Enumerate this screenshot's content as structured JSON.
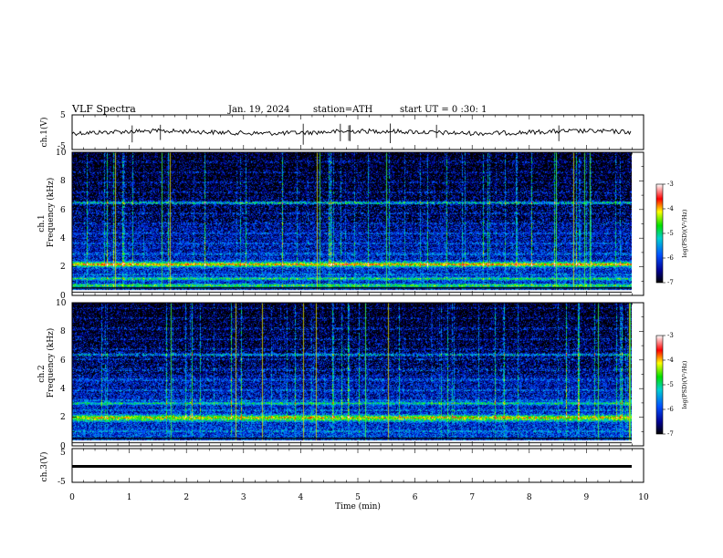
{
  "header": {
    "title": "VLF Spectra",
    "date": "Jan. 19, 2024",
    "station": "station=ATH",
    "start_ut": "start UT = 0 :30: 1"
  },
  "chart_data": [
    {
      "type": "line",
      "panel": "ch1-waveform",
      "ylabel": "ch.1(V)",
      "yticks": [
        "5",
        "-5"
      ],
      "ylim": [
        -5,
        5
      ],
      "xlim": [
        0,
        10
      ],
      "baseline_value": 0,
      "color": "#000000"
    },
    {
      "type": "heatmap",
      "panel": "ch1-spectrogram",
      "ylabel": "ch.1 Frequency (kHz)",
      "ylabel_line1": "ch.1",
      "ylabel_line2": "Frequency (kHz)",
      "yticks": [
        "0",
        "2",
        "4",
        "6",
        "8",
        "10"
      ],
      "ylim": [
        0,
        10
      ],
      "xlim": [
        0,
        10
      ],
      "colorbar": {
        "label": "log(PSD)(V²/Hz)",
        "ticks": [
          "-3",
          "-4",
          "-5",
          "-6",
          "-7"
        ],
        "range": [
          -7,
          -3
        ]
      },
      "strong_bands_khz": [
        2.2,
        1.2,
        0.7,
        6.5
      ]
    },
    {
      "type": "heatmap",
      "panel": "ch2-spectrogram",
      "ylabel": "ch.2 Frequency (kHz)",
      "ylabel_line1": "ch.2",
      "ylabel_line2": "Frequency (kHz)",
      "yticks": [
        "0",
        "2",
        "4",
        "6",
        "8",
        "10"
      ],
      "ylim": [
        0,
        10
      ],
      "xlim": [
        0,
        10
      ],
      "colorbar": {
        "label": "log(PSD)(V²/Hz)",
        "ticks": [
          "-3",
          "-4",
          "-5",
          "-6",
          "-7"
        ],
        "range": [
          -7,
          -3
        ]
      },
      "strong_bands_khz": [
        2.0,
        3.0,
        6.4
      ]
    },
    {
      "type": "line",
      "panel": "ch3-waveform",
      "ylabel": "ch.3(V)",
      "yticks": [
        "5",
        "-5"
      ],
      "ylim": [
        -5,
        5
      ],
      "xlim": [
        0,
        10
      ],
      "baseline_value": -2,
      "color": "#000000"
    }
  ],
  "xaxis": {
    "label": "Time (min)",
    "ticks": [
      "0",
      "1",
      "2",
      "3",
      "4",
      "5",
      "6",
      "7",
      "8",
      "9",
      "10"
    ],
    "range": [
      0,
      10
    ]
  },
  "colors": {
    "frame": "#000000",
    "background": "#ffffff"
  }
}
